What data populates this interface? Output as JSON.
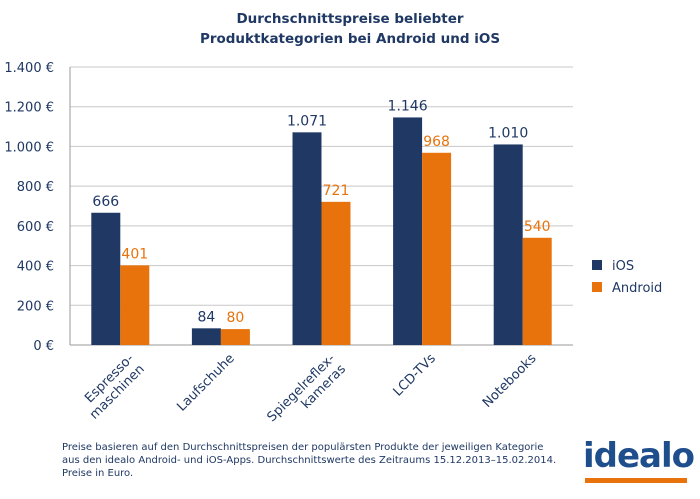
{
  "chart_data": {
    "type": "bar",
    "title_lines": [
      "Durchschnittspreise beliebter",
      "Produktkategorien bei Android und iOS"
    ],
    "categories": [
      [
        "Espresso-",
        "maschinen"
      ],
      [
        "Laufschuhe"
      ],
      [
        "Spiegelreflex-",
        "kameras"
      ],
      [
        "LCD-TVs"
      ],
      [
        "Notebooks"
      ]
    ],
    "series": [
      {
        "name": "iOS",
        "color": "#1f3864",
        "values": [
          666,
          84,
          1071,
          1146,
          1010
        ],
        "labels": [
          "666",
          "84",
          "1.071",
          "1.146",
          "1.010"
        ]
      },
      {
        "name": "Android",
        "color": "#e8730c",
        "values": [
          401,
          80,
          721,
          968,
          540
        ],
        "labels": [
          "401",
          "80",
          "721",
          "968",
          "540"
        ]
      }
    ],
    "ylim": [
      0,
      1400
    ],
    "yticks": [
      0,
      200,
      400,
      600,
      800,
      1000,
      1200,
      1400
    ],
    "ytick_labels": [
      "0 €",
      "200 €",
      "400 €",
      "600 €",
      "800 €",
      "1.000 €",
      "1.200 €",
      "1.400 €"
    ],
    "grid": true,
    "legend_position": "right"
  },
  "footnote": [
    "Preise basieren auf den Durchschnittspreisen der populärsten Produkte der jeweiligen Kategorie",
    "aus den idealo Android- und iOS-Apps. Durchschnittswerte des Zeitraums 15.12.2013–15.02.2014.",
    "Preise in Euro."
  ],
  "brand": "idealo"
}
